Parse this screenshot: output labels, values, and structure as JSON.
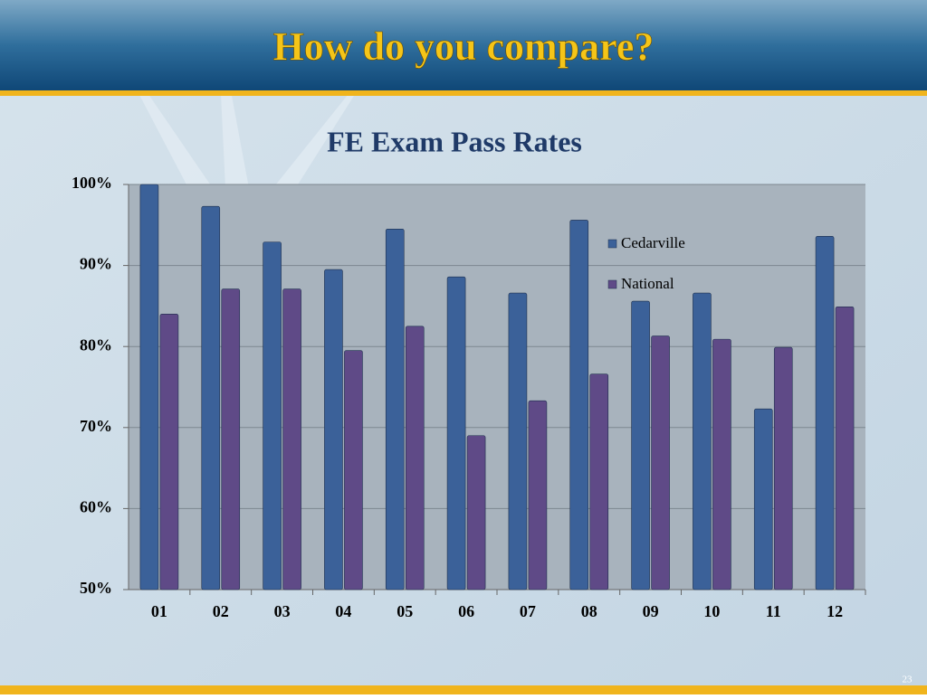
{
  "slide": {
    "title": "How do you compare?",
    "page_number": "23"
  },
  "chart_data": {
    "type": "bar",
    "title": "FE Exam Pass Rates",
    "categories": [
      "01",
      "02",
      "03",
      "04",
      "05",
      "06",
      "07",
      "08",
      "09",
      "10",
      "11",
      "12"
    ],
    "series": [
      {
        "name": "Cedarville",
        "color": "#3b6199",
        "values": [
          100,
          97.3,
          92.9,
          89.5,
          94.5,
          88.6,
          86.6,
          95.6,
          85.6,
          86.6,
          72.3,
          93.6
        ]
      },
      {
        "name": "National",
        "color": "#5f4a87",
        "values": [
          84.0,
          87.1,
          87.1,
          79.5,
          82.5,
          69.0,
          73.3,
          76.6,
          81.3,
          80.9,
          79.9,
          84.9
        ]
      }
    ],
    "ylim": [
      50,
      100
    ],
    "yticks": [
      {
        "value": 50,
        "label": "50%"
      },
      {
        "value": 60,
        "label": "60%"
      },
      {
        "value": 70,
        "label": "70%"
      },
      {
        "value": 80,
        "label": "80%"
      },
      {
        "value": 90,
        "label": "90%"
      },
      {
        "value": 100,
        "label": "100%"
      }
    ],
    "grid": true,
    "legend": "inside-right"
  }
}
